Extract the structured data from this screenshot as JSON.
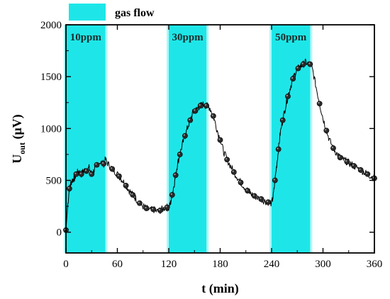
{
  "chart_data": {
    "type": "line",
    "xlabel": "t (min)",
    "ylabel": "U",
    "ylabel_sub": "out",
    "ylabel_unit": " (μV)",
    "xlim": [
      0,
      360
    ],
    "ylim": [
      -200,
      2000
    ],
    "x_ticks": [
      0,
      60,
      120,
      180,
      240,
      300,
      360
    ],
    "y_ticks": [
      0,
      500,
      1000,
      1500,
      2000
    ],
    "grid": false,
    "legend": {
      "label": "gas flow",
      "placement": "top-left",
      "color": "#1ee6e8"
    },
    "gas_flow_regions": [
      {
        "x0": 0,
        "x1": 46,
        "label": "10ppm"
      },
      {
        "x0": 120,
        "x1": 164,
        "label": "30ppm"
      },
      {
        "x0": 240,
        "x1": 285,
        "label": "50ppm"
      }
    ],
    "series": [
      {
        "line_color": "#000000",
        "marker_color": "#2a2a2a",
        "x": [
          0,
          2,
          4,
          6,
          8,
          10,
          12,
          15,
          18,
          21,
          24,
          27,
          30,
          33,
          36,
          40,
          44,
          46,
          50,
          54,
          58,
          62,
          66,
          70,
          74,
          78,
          82,
          86,
          90,
          94,
          98,
          102,
          106,
          110,
          114,
          118,
          120,
          122,
          124,
          126,
          128,
          130,
          133,
          136,
          139,
          142,
          145,
          148,
          151,
          154,
          157,
          160,
          164,
          168,
          172,
          176,
          180,
          184,
          188,
          192,
          196,
          200,
          204,
          208,
          212,
          216,
          220,
          224,
          228,
          232,
          236,
          240,
          242,
          244,
          246,
          248,
          250,
          253,
          256,
          259,
          262,
          265,
          268,
          271,
          274,
          277,
          280,
          285,
          288,
          292,
          296,
          300,
          304,
          308,
          312,
          316,
          320,
          324,
          328,
          332,
          336,
          340,
          344,
          348,
          352,
          356,
          360
        ],
        "y": [
          20,
          250,
          420,
          480,
          510,
          520,
          560,
          590,
          560,
          600,
          590,
          620,
          560,
          600,
          650,
          680,
          660,
          700,
          650,
          610,
          580,
          540,
          500,
          450,
          400,
          360,
          320,
          280,
          250,
          230,
          210,
          220,
          200,
          210,
          230,
          240,
          230,
          280,
          360,
          450,
          550,
          650,
          750,
          850,
          930,
          1010,
          1080,
          1150,
          1170,
          1200,
          1220,
          1230,
          1220,
          1200,
          1120,
          1000,
          890,
          780,
          700,
          640,
          580,
          530,
          480,
          440,
          400,
          370,
          350,
          330,
          320,
          300,
          290,
          280,
          350,
          500,
          650,
          800,
          950,
          1080,
          1200,
          1310,
          1400,
          1480,
          1540,
          1580,
          1600,
          1620,
          1640,
          1620,
          1560,
          1400,
          1240,
          1100,
          980,
          880,
          810,
          760,
          720,
          700,
          680,
          660,
          640,
          620,
          600,
          580,
          560,
          540,
          520
        ]
      }
    ],
    "marker_x": [
      0,
      4,
      12,
      18,
      24,
      30,
      36,
      44,
      54,
      62,
      70,
      78,
      86,
      94,
      102,
      110,
      118,
      124,
      128,
      133,
      139,
      145,
      151,
      157,
      164,
      172,
      180,
      188,
      196,
      204,
      212,
      220,
      228,
      236,
      244,
      248,
      253,
      259,
      265,
      271,
      277,
      285,
      296,
      304,
      312,
      320,
      328,
      336,
      344,
      352,
      360
    ]
  }
}
